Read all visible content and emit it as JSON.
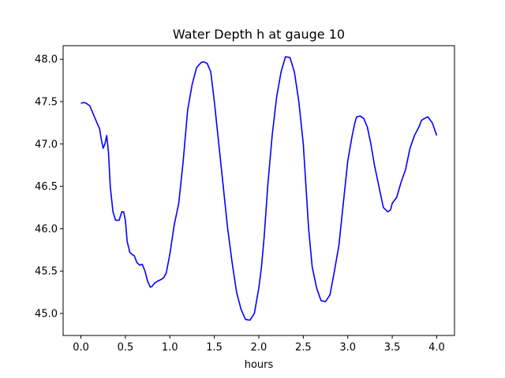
{
  "chart_data": {
    "type": "line",
    "title": "Water Depth h at gauge 10",
    "xlabel": "hours",
    "ylabel": "",
    "xlim": [
      -0.2,
      4.2
    ],
    "ylim": [
      44.74,
      48.16
    ],
    "grid": false,
    "x_ticks": [
      0.0,
      0.5,
      1.0,
      1.5,
      2.0,
      2.5,
      3.0,
      3.5,
      4.0
    ],
    "x_tick_labels": [
      "0.0",
      "0.5",
      "1.0",
      "1.5",
      "2.0",
      "2.5",
      "3.0",
      "3.5",
      "4.0"
    ],
    "y_ticks": [
      45.0,
      45.5,
      46.0,
      46.5,
      47.0,
      47.5,
      48.0
    ],
    "y_tick_labels": [
      "45.0",
      "45.5",
      "46.0",
      "46.5",
      "47.0",
      "47.5",
      "48.0"
    ],
    "series": [
      {
        "color": "#0000ff",
        "x": [
          0.0,
          0.03,
          0.06,
          0.1,
          0.14,
          0.18,
          0.21,
          0.23,
          0.25,
          0.27,
          0.29,
          0.31,
          0.33,
          0.36,
          0.39,
          0.43,
          0.46,
          0.48,
          0.5,
          0.52,
          0.55,
          0.57,
          0.6,
          0.63,
          0.66,
          0.69,
          0.72,
          0.75,
          0.78,
          0.8,
          0.83,
          0.86,
          0.9,
          0.93,
          0.96,
          1.0,
          1.05,
          1.1,
          1.15,
          1.2,
          1.25,
          1.3,
          1.35,
          1.38,
          1.42,
          1.46,
          1.5,
          1.55,
          1.6,
          1.65,
          1.7,
          1.75,
          1.8,
          1.85,
          1.9,
          1.95,
          2.0,
          2.03,
          2.06,
          2.1,
          2.15,
          2.2,
          2.25,
          2.3,
          2.35,
          2.4,
          2.45,
          2.5,
          2.53,
          2.56,
          2.6,
          2.65,
          2.7,
          2.75,
          2.8,
          2.85,
          2.9,
          2.95,
          3.0,
          3.05,
          3.08,
          3.1,
          3.14,
          3.18,
          3.22,
          3.26,
          3.3,
          3.35,
          3.4,
          3.45,
          3.48,
          3.5,
          3.55,
          3.6,
          3.65,
          3.7,
          3.75,
          3.8,
          3.83,
          3.86,
          3.9,
          3.95,
          4.0
        ],
        "y": [
          47.48,
          47.49,
          47.48,
          47.45,
          47.35,
          47.25,
          47.18,
          47.05,
          46.95,
          47.0,
          47.1,
          46.9,
          46.5,
          46.2,
          46.1,
          46.1,
          46.2,
          46.2,
          46.1,
          45.85,
          45.72,
          45.7,
          45.68,
          45.6,
          45.57,
          45.58,
          45.5,
          45.38,
          45.31,
          45.32,
          45.36,
          45.38,
          45.4,
          45.42,
          45.48,
          45.7,
          46.05,
          46.3,
          46.8,
          47.4,
          47.7,
          47.9,
          47.96,
          47.97,
          47.95,
          47.85,
          47.5,
          47.0,
          46.5,
          46.0,
          45.6,
          45.25,
          45.05,
          44.93,
          44.92,
          45.0,
          45.3,
          45.55,
          45.9,
          46.5,
          47.1,
          47.55,
          47.85,
          48.03,
          48.02,
          47.85,
          47.5,
          47.0,
          46.5,
          46.0,
          45.55,
          45.3,
          45.15,
          45.14,
          45.22,
          45.5,
          45.8,
          46.3,
          46.8,
          47.1,
          47.25,
          47.32,
          47.33,
          47.3,
          47.2,
          47.0,
          46.75,
          46.5,
          46.25,
          46.2,
          46.22,
          46.3,
          46.37,
          46.55,
          46.7,
          46.95,
          47.1,
          47.2,
          47.28,
          47.3,
          47.32,
          47.25,
          47.1
        ]
      }
    ]
  }
}
